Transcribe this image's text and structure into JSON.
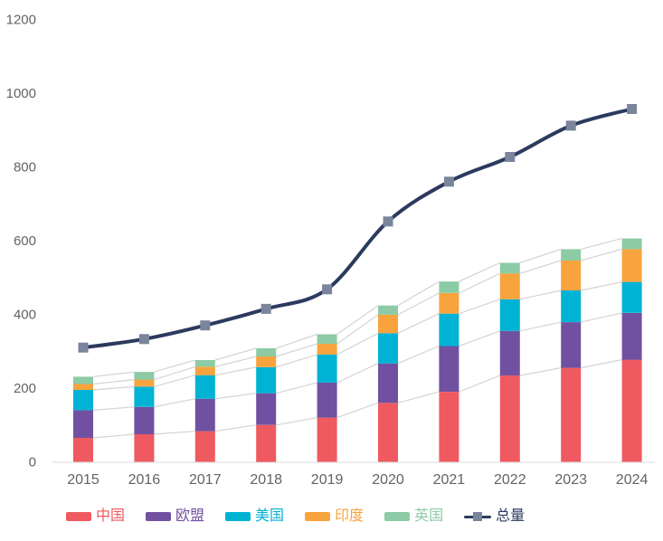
{
  "chart_data": {
    "type": "bar",
    "subtype": "stacked-bars-with-total-line",
    "title": "",
    "xlabel": "",
    "ylabel": "",
    "categories": [
      "2015",
      "2016",
      "2017",
      "2018",
      "2019",
      "2020",
      "2021",
      "2022",
      "2023",
      "2024"
    ],
    "series": [
      {
        "name": "中国",
        "color": "#ee5a5f",
        "values": [
          65,
          75,
          83,
          100,
          120,
          160,
          190,
          234,
          255,
          277
        ]
      },
      {
        "name": "欧盟",
        "color": "#7051a1",
        "values": [
          75,
          74,
          88,
          86,
          95,
          107,
          124,
          121,
          124,
          127
        ]
      },
      {
        "name": "美国",
        "color": "#00b3d5",
        "values": [
          55,
          55,
          64,
          71,
          76,
          82,
          88,
          86,
          86,
          84
        ]
      },
      {
        "name": "印度",
        "color": "#f8a33e",
        "values": [
          16,
          19,
          23,
          29,
          29,
          50,
          56,
          70,
          81,
          89
        ]
      },
      {
        "name": "英国",
        "color": "#8ccba5",
        "values": [
          20,
          21,
          18,
          22,
          26,
          25,
          31,
          29,
          31,
          29
        ]
      }
    ],
    "line_series": {
      "name": "总量",
      "color": "#2c3a5f",
      "marker_color": "#7a849b",
      "marker_shape": "square",
      "values": [
        310,
        333,
        370,
        415,
        468,
        652,
        760,
        827,
        912,
        957
      ]
    },
    "y_axis": {
      "min": 0,
      "max": 1200,
      "ticks": [
        0,
        200,
        400,
        600,
        800,
        1000,
        1200
      ]
    },
    "grid": false,
    "legend_position": "bottom",
    "colors": {
      "axis_line": "#dcdcdc",
      "tick_text": "#636363",
      "connector_line": "#d4d4d4",
      "background": "#ffffff"
    }
  }
}
